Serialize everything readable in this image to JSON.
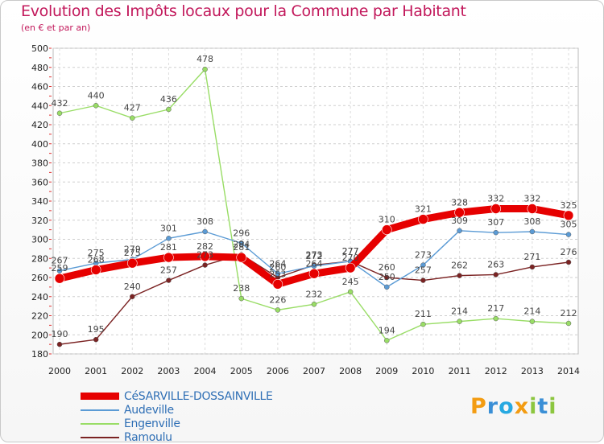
{
  "header": {
    "title": "Evolution des Impôts locaux pour la Commune par Habitant",
    "subtitle": "(en € et par an)"
  },
  "logo": {
    "letters": [
      "P",
      "r",
      "o",
      "x",
      "i",
      "t",
      "i"
    ],
    "colors": [
      "#f39c12",
      "#3a8fd6",
      "#27a9e1",
      "#f39c12",
      "#8cc63f",
      "#3a8fd6",
      "#8cc63f"
    ]
  },
  "chart_data": {
    "type": "line",
    "title": "Evolution des Impôts locaux pour la Commune par Habitant",
    "ylabel": "(en € et par an)",
    "x": [
      2000,
      2001,
      2002,
      2003,
      2004,
      2005,
      2006,
      2007,
      2008,
      2009,
      2010,
      2011,
      2012,
      2013,
      2014
    ],
    "ylim": [
      180,
      500
    ],
    "yticks": [
      180,
      200,
      220,
      240,
      260,
      280,
      300,
      320,
      340,
      360,
      380,
      400,
      420,
      440,
      460,
      480,
      500
    ],
    "grid": true,
    "series": [
      {
        "name": "Ramoulu",
        "color": "#7b2323",
        "values": [
          190,
          195,
          240,
          257,
          273,
          284,
          260,
          273,
          277,
          260,
          257,
          262,
          263,
          271,
          276
        ]
      },
      {
        "name": "Engenville",
        "color": "#99dd66",
        "values": [
          432,
          440,
          427,
          436,
          478,
          238,
          226,
          232,
          245,
          194,
          211,
          214,
          217,
          214,
          212
        ]
      },
      {
        "name": "Audeville",
        "color": "#5b9bd5",
        "values": [
          267,
          275,
          279,
          301,
          308,
          296,
          264,
          272,
          277,
          250,
          273,
          309,
          307,
          308,
          305
        ]
      },
      {
        "name": "CéSARVILLE-DOSSAINVILLE",
        "color": "#e60000",
        "values": [
          259,
          268,
          275,
          281,
          282,
          281,
          253,
          264,
          270,
          310,
          321,
          328,
          332,
          332,
          325
        ]
      }
    ],
    "legend": [
      "CéSARVILLE-DOSSAINVILLE",
      "Audeville",
      "Engenville",
      "Ramoulu"
    ]
  }
}
